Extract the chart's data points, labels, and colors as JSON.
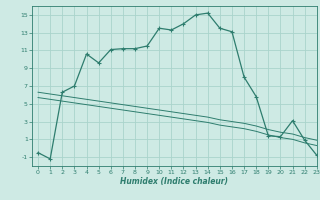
{
  "xlabel": "Humidex (Indice chaleur)",
  "bg_color": "#ceeae4",
  "grid_color": "#aad4cc",
  "line_color": "#2e7d6e",
  "curve1_x": [
    0,
    1,
    2,
    3,
    4,
    5,
    6,
    7,
    8,
    9,
    10,
    11,
    12,
    13,
    14,
    15,
    16,
    17,
    18,
    19,
    20,
    21,
    22,
    23
  ],
  "curve1_y": [
    -0.5,
    -1.2,
    6.3,
    7.0,
    10.6,
    9.6,
    11.1,
    11.2,
    11.2,
    11.5,
    13.5,
    13.3,
    14.0,
    15.0,
    15.2,
    13.5,
    13.1,
    8.0,
    5.8,
    1.4,
    1.3,
    3.1,
    0.9,
    -0.8
  ],
  "curve2_x": [
    0,
    1,
    2,
    3,
    4,
    5,
    6,
    7,
    8,
    9,
    10,
    11,
    12,
    13,
    14,
    15,
    16,
    17,
    18,
    19,
    20,
    21,
    22,
    23
  ],
  "curve2_y": [
    6.3,
    6.1,
    5.9,
    5.7,
    5.5,
    5.3,
    5.1,
    4.9,
    4.7,
    4.5,
    4.3,
    4.1,
    3.9,
    3.7,
    3.5,
    3.2,
    3.0,
    2.8,
    2.5,
    2.1,
    1.8,
    1.6,
    1.2,
    0.9
  ],
  "curve3_y": [
    5.7,
    5.5,
    5.3,
    5.1,
    4.9,
    4.7,
    4.5,
    4.3,
    4.1,
    3.9,
    3.7,
    3.5,
    3.3,
    3.1,
    2.9,
    2.6,
    2.4,
    2.2,
    1.9,
    1.5,
    1.2,
    1.0,
    0.6,
    0.3
  ],
  "ylim": [
    -2,
    16
  ],
  "xlim": [
    -0.5,
    23
  ],
  "yticks": [
    -1,
    1,
    3,
    5,
    7,
    9,
    11,
    13,
    15
  ],
  "xticks": [
    0,
    1,
    2,
    3,
    4,
    5,
    6,
    7,
    8,
    9,
    10,
    11,
    12,
    13,
    14,
    15,
    16,
    17,
    18,
    19,
    20,
    21,
    22,
    23
  ]
}
